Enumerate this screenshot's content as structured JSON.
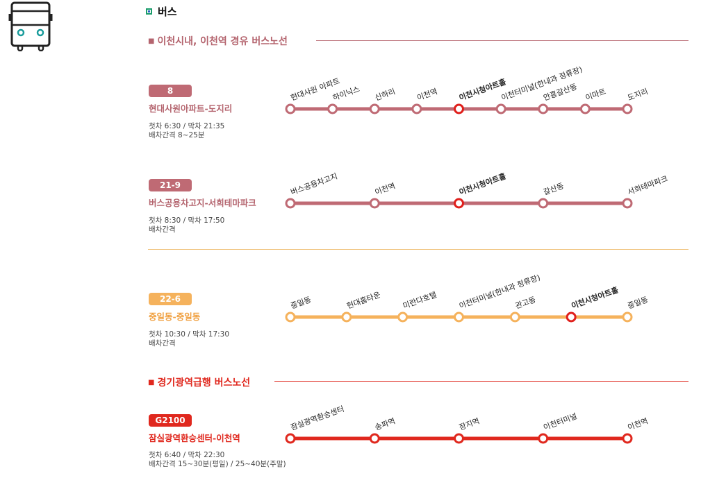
{
  "header": {
    "title": "버스"
  },
  "sections": [
    {
      "title": "이천시내, 이천역 경유 버스노선",
      "color": "#b4646e",
      "rule_color": "#c07a82"
    },
    {
      "title": "경기광역급행 버스노선",
      "color": "#e0281e",
      "rule_color": "#e0281e"
    }
  ],
  "routes": [
    {
      "number": "8",
      "name": "현대사원아파트-도지리",
      "info1": "첫차 6:30 / 막차 21:35",
      "info2": "배차간격 8~25분",
      "color": "#bf6a74",
      "stops": [
        "현대사원 아파트",
        "하이닉스",
        "신하리",
        "이천역",
        "이천시청아트홀",
        "이천터미널(한내과 정류장)",
        "안흥갈산동",
        "이마트",
        "도지리"
      ],
      "highlight": "이천시청아트홀"
    },
    {
      "number": "21-9",
      "name": "버스공용차고지-서희테마파크",
      "info1": "첫차 8:30 / 막차 17:50",
      "info2": "배차간격",
      "color": "#bf6a74",
      "stops": [
        "버스공용차고지",
        "이천역",
        "이천시청아트홀",
        "갈산동",
        "서희테마파크"
      ],
      "highlight": "이천시청아트홀"
    },
    {
      "number": "22-6",
      "name": "중일동-중일동",
      "info1": "첫차 10:30 /  막차 17:30",
      "info2": "배차간격",
      "color": "#f5b25c",
      "stops": [
        "중일동",
        "현대홈타운",
        "미란다호텔",
        "이천터미널(한내과 정류장)",
        "관고동",
        "이천시청아트홀",
        "중일동"
      ],
      "highlight": "이천시청아트홀"
    },
    {
      "number": "G2100",
      "name": "잠실광역환승센터-이천역",
      "info1": "첫차 6:40 / 막차 22:30",
      "info2": "배차간격 15~30분(평일) / 25~40분(주말)",
      "color": "#e0281e",
      "stops": [
        "잠실광역환승센터",
        "송파역",
        "장지역",
        "이천터미널",
        "이천역"
      ],
      "highlight": ""
    }
  ],
  "colors": {
    "highlight_stop": "#e0201c",
    "divider": "#f0c27a"
  }
}
